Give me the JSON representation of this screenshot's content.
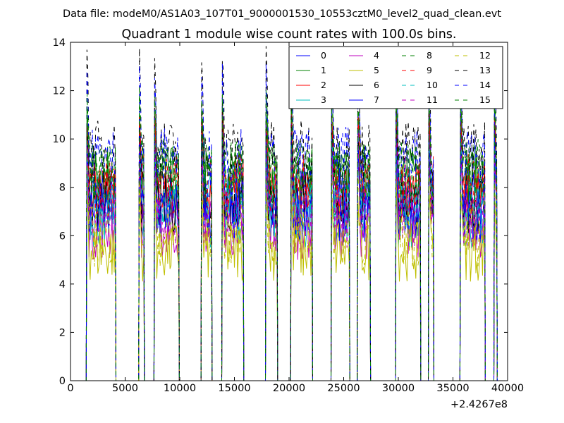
{
  "chart_data": {
    "type": "line",
    "suptitle": "Data file: modeM0/AS1A03_107T01_9000001530_10553cztM0_level2_quad_clean.evt",
    "title": "Quadrant 1 module wise count rates with 100.0s bins.",
    "xlabel": "",
    "ylabel": "",
    "x_offset_label": "+2.4267e8",
    "xlim": [
      0,
      40000
    ],
    "ylim": [
      0,
      14
    ],
    "xticks": [
      "0",
      "5000",
      "10000",
      "15000",
      "20000",
      "25000",
      "30000",
      "35000",
      "40000"
    ],
    "yticks": [
      "0",
      "2",
      "4",
      "6",
      "8",
      "10",
      "12",
      "14"
    ],
    "grid": false,
    "legend_position": "top-right",
    "legend_columns": 4,
    "segments": [
      [
        1500,
        4100
      ],
      [
        6300,
        6700
      ],
      [
        7700,
        9900
      ],
      [
        12000,
        12900
      ],
      [
        13900,
        15800
      ],
      [
        17900,
        18900
      ],
      [
        20200,
        22100
      ],
      [
        23900,
        25500
      ],
      [
        26300,
        27400
      ],
      [
        29800,
        32000
      ],
      [
        32800,
        33200
      ],
      [
        35700,
        37900
      ],
      [
        38800,
        39000
      ]
    ],
    "series": [
      {
        "name": "0",
        "color": "#0000ff",
        "dash": "solid",
        "level": 7.6,
        "peak": 11.0
      },
      {
        "name": "1",
        "color": "#008000",
        "dash": "solid",
        "level": 8.4,
        "peak": 11.8
      },
      {
        "name": "2",
        "color": "#ff0000",
        "dash": "solid",
        "level": 7.8,
        "peak": 11.3
      },
      {
        "name": "3",
        "color": "#00bfbf",
        "dash": "solid",
        "level": 6.8,
        "peak": 10.0
      },
      {
        "name": "4",
        "color": "#bf00bf",
        "dash": "solid",
        "level": 6.3,
        "peak": 9.6
      },
      {
        "name": "5",
        "color": "#bfbf00",
        "dash": "solid",
        "level": 5.4,
        "peak": 8.4
      },
      {
        "name": "6",
        "color": "#000000",
        "dash": "solid",
        "level": 7.4,
        "peak": 10.8
      },
      {
        "name": "7",
        "color": "#0000ff",
        "dash": "solid",
        "level": 7.0,
        "peak": 10.4
      },
      {
        "name": "8",
        "color": "#008000",
        "dash": "dashed",
        "level": 8.8,
        "peak": 12.1
      },
      {
        "name": "9",
        "color": "#ff0000",
        "dash": "dashed",
        "level": 8.1,
        "peak": 11.5
      },
      {
        "name": "10",
        "color": "#00bfbf",
        "dash": "dashed",
        "level": 7.2,
        "peak": 10.5
      },
      {
        "name": "11",
        "color": "#bf00bf",
        "dash": "dashed",
        "level": 6.8,
        "peak": 10.1
      },
      {
        "name": "12",
        "color": "#bfbf00",
        "dash": "dashed",
        "level": 6.0,
        "peak": 9.0
      },
      {
        "name": "13",
        "color": "#000000",
        "dash": "dashed",
        "level": 9.5,
        "peak": 13.9
      },
      {
        "name": "14",
        "color": "#0000ff",
        "dash": "dashed",
        "level": 9.2,
        "peak": 13.2
      },
      {
        "name": "15",
        "color": "#008000",
        "dash": "dashed",
        "level": 8.6,
        "peak": 12.4
      }
    ]
  }
}
